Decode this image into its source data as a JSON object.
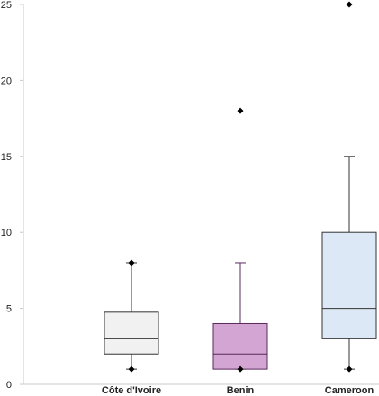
{
  "chart_data": {
    "type": "box",
    "ylim": [
      0,
      25
    ],
    "y_ticks": [
      0,
      5,
      10,
      15,
      20,
      25
    ],
    "grid": false,
    "categories": [
      "Côte d'Ivoire",
      "Benin",
      "Cameroon"
    ],
    "boxes": [
      {
        "category": "Côte d'Ivoire",
        "whisker_low": 1,
        "q1": 2,
        "median": 3,
        "q3": 4.75,
        "whisker_high": 8,
        "outliers": [],
        "extreme_markers": [
          1,
          8
        ],
        "fill": "#f1f1f1",
        "stroke": "#333333"
      },
      {
        "category": "Benin",
        "whisker_low": 1,
        "q1": 1,
        "median": 2,
        "q3": 4,
        "whisker_high": 8,
        "outliers": [
          18
        ],
        "extreme_markers": [
          1
        ],
        "fill": "#d3a5d3",
        "stroke": "#5a2a5a"
      },
      {
        "category": "Cameroon",
        "whisker_low": 1,
        "q1": 3,
        "median": 5,
        "q3": 10,
        "whisker_high": 15,
        "outliers": [
          25
        ],
        "extreme_markers": [
          1
        ],
        "fill": "#dce8f5",
        "stroke": "#333333"
      }
    ]
  }
}
